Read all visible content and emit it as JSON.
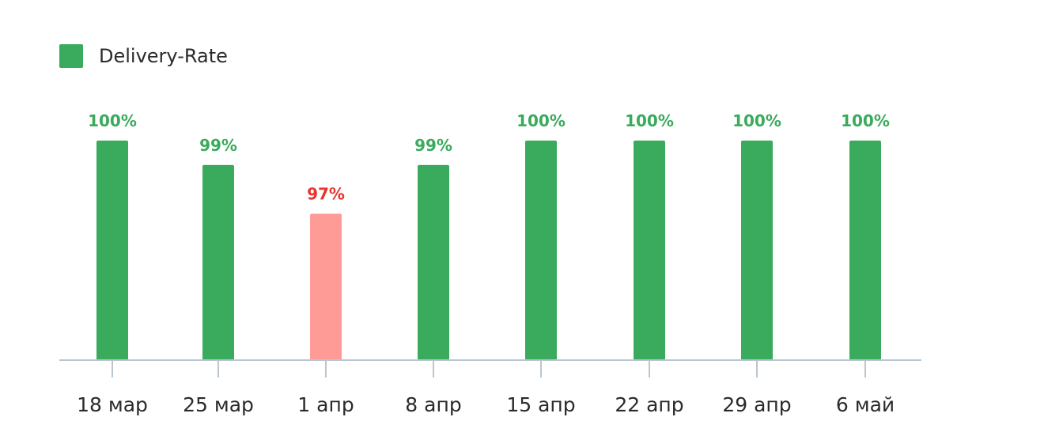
{
  "legend": {
    "label": "Delivery-Rate",
    "color": "#3aaa5c"
  },
  "colors": {
    "bar_ok": "#3aaa5c",
    "bar_low": "#ff9b97",
    "label_ok": "#3aaa5c",
    "label_low": "#e8332e",
    "axis": "#b9c6d0",
    "tick_text": "#2b2b2b"
  },
  "chart_data": {
    "type": "bar",
    "categories": [
      "18 мар",
      "25 мар",
      "1 апр",
      "8 апр",
      "15 апр",
      "22 апр",
      "29 апр",
      "6 май"
    ],
    "series": [
      {
        "name": "Delivery-Rate",
        "values": [
          100,
          99,
          97,
          99,
          100,
          100,
          100,
          100
        ],
        "data_labels": [
          "100%",
          "99%",
          "97%",
          "99%",
          "100%",
          "100%",
          "100%",
          "100%"
        ],
        "status": [
          "ok",
          "ok",
          "low",
          "ok",
          "ok",
          "ok",
          "ok",
          "ok"
        ]
      }
    ],
    "ylim": [
      91,
      100
    ],
    "grid": false,
    "legend_position": "top-left",
    "title": "",
    "xlabel": "",
    "ylabel": ""
  }
}
